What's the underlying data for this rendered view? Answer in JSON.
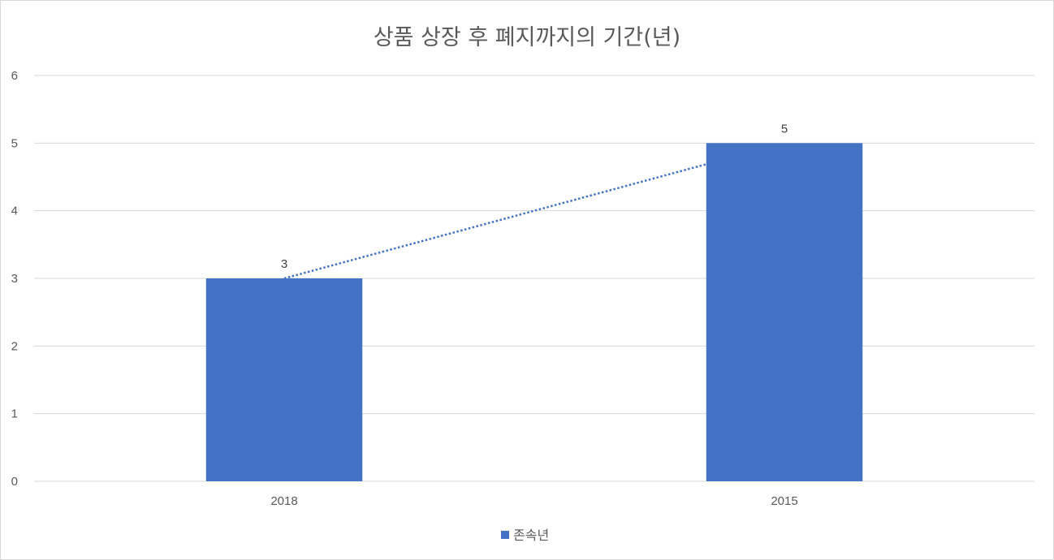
{
  "chart_data": {
    "type": "bar",
    "title": "상품 상장 후 폐지까지의 기간(년)",
    "categories": [
      "2018",
      "2015"
    ],
    "series": [
      {
        "name": "존속년",
        "values": [
          3,
          5
        ],
        "color": "#4472c4"
      }
    ],
    "data_labels": [
      "3",
      "5"
    ],
    "ylim": [
      0,
      6
    ],
    "yticks": [
      "0",
      "1",
      "2",
      "3",
      "4",
      "5",
      "6"
    ],
    "grid": true,
    "trendline": {
      "type": "linear",
      "style": "dotted",
      "color": "#4472c4"
    },
    "legend_position": "bottom",
    "gridline_color": "#d9d9d9",
    "text_color": "#595959"
  }
}
